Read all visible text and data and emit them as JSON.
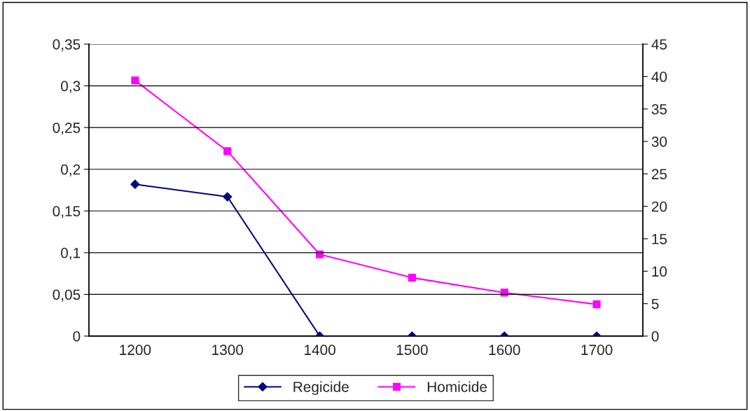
{
  "chart_data": {
    "type": "line",
    "categories": [
      "1200",
      "1300",
      "1400",
      "1500",
      "1600",
      "1700"
    ],
    "series": [
      {
        "name": "Regicide",
        "color": "#000080",
        "marker": "diamond",
        "values": [
          0.182,
          0.167,
          0,
          0,
          0,
          0
        ]
      },
      {
        "name": "Homicide",
        "color": "#ff00ff",
        "marker": "square",
        "axis": "y2",
        "values": [
          39.4,
          28.5,
          12.6,
          9.0,
          6.7,
          4.9
        ]
      }
    ],
    "ylim": [
      0,
      0.35
    ],
    "yticks": [
      {
        "value": 0,
        "label": "0"
      },
      {
        "value": 0.05,
        "label": "0,05"
      },
      {
        "value": 0.1,
        "label": "0,1"
      },
      {
        "value": 0.15,
        "label": "0,15"
      },
      {
        "value": 0.2,
        "label": "0,2"
      },
      {
        "value": 0.25,
        "label": "0,25"
      },
      {
        "value": 0.3,
        "label": "0,3"
      },
      {
        "value": 0.35,
        "label": "0,35"
      }
    ],
    "y2lim": [
      0,
      45
    ],
    "y2ticks": [
      0,
      5,
      10,
      15,
      20,
      25,
      30,
      35,
      40,
      45
    ],
    "grid": "y",
    "legend": "bottom",
    "line_style": "solid"
  }
}
